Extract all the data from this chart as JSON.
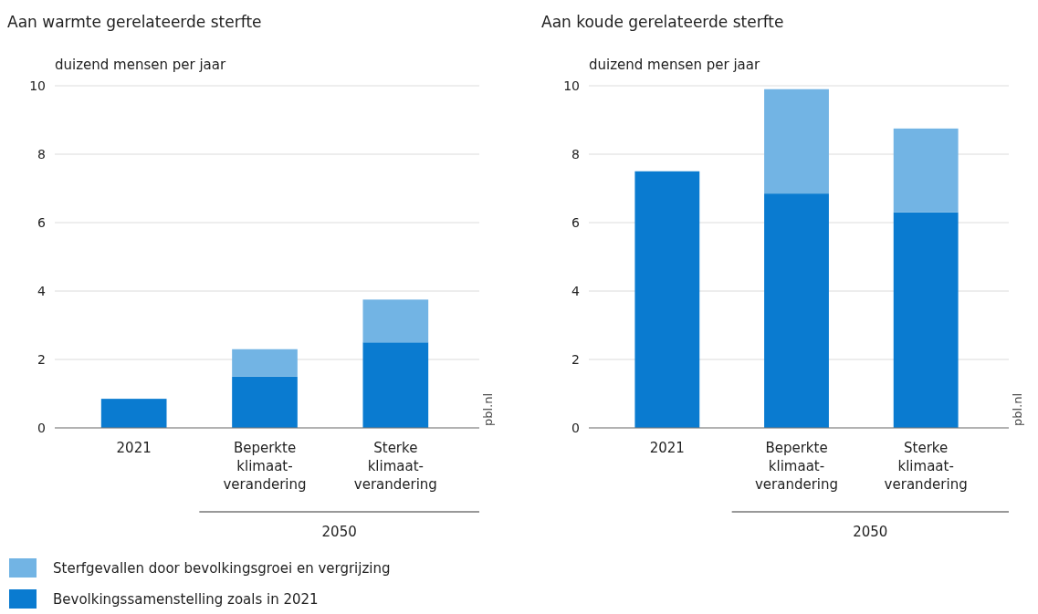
{
  "chart_data": [
    {
      "type": "bar",
      "title": "Aan warmte gerelateerde sterfte",
      "ylabel": "duizend mensen per jaar",
      "categories": [
        "2021",
        "Beperkte\nklimaat-\nverandering",
        "Sterke\nklimaat-\nverandering"
      ],
      "stacked": true,
      "series": [
        {
          "name": "Bevolkingssamenstelling zoals in 2021",
          "color": "#0a7bd0",
          "values": [
            0.85,
            1.5,
            2.5
          ]
        },
        {
          "name": "Sterfgevallen door bevolkingsgroei en vergrijzing",
          "color": "#72b4e4",
          "values": [
            null,
            0.8,
            1.25
          ]
        }
      ],
      "ylim": [
        0,
        10
      ],
      "yticks": [
        0,
        2,
        4,
        6,
        8,
        10
      ],
      "grid": "y",
      "legend": "bottom",
      "annotations": [
        "2050",
        "pbl.nl"
      ]
    },
    {
      "type": "bar",
      "title": "Aan koude gerelateerde sterfte",
      "ylabel": "duizend mensen per jaar",
      "categories": [
        "2021",
        "Beperkte\nklimaat-\nverandering",
        "Sterke\nklimaat-\nverandering"
      ],
      "stacked": true,
      "series": [
        {
          "color": "#0a7bd0",
          "values": [
            7.5,
            6.85,
            6.3
          ]
        },
        {
          "color": "#72b4e4",
          "values": [
            null,
            3.05,
            2.45
          ]
        }
      ],
      "ylim": [
        0,
        10
      ],
      "yticks": [
        0,
        2,
        4,
        6,
        8,
        10
      ],
      "grid": "y",
      "annotations": [
        "2050",
        "pbl.nl"
      ]
    }
  ]
}
